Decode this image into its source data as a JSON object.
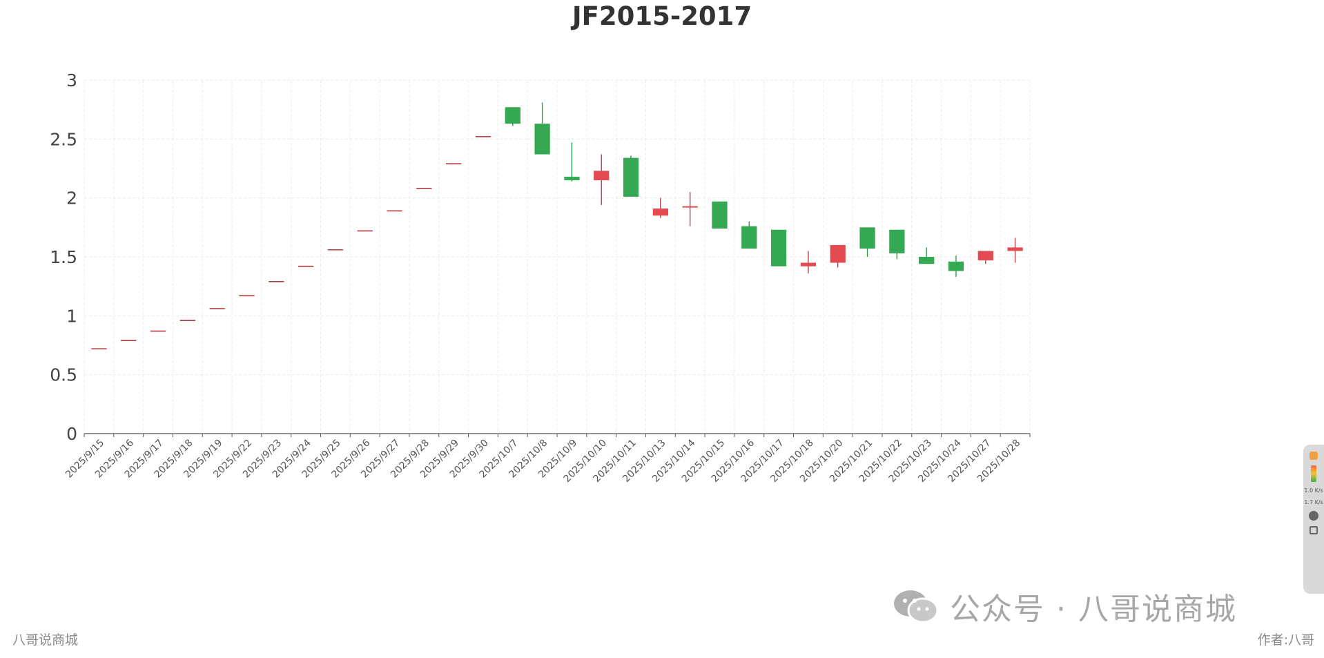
{
  "chart_data": {
    "type": "candlestick",
    "title": "JF2015-2017",
    "xlabel": "",
    "ylabel": "",
    "ylim": [
      0,
      3
    ],
    "y_ticks": [
      "0",
      "0.5",
      "1",
      "1.5",
      "2",
      "2.5",
      "3"
    ],
    "grid": true,
    "legend": "none",
    "categories": [
      "2025/9/15",
      "2025/9/16",
      "2025/9/17",
      "2025/9/18",
      "2025/9/19",
      "2025/9/22",
      "2025/9/23",
      "2025/9/24",
      "2025/9/25",
      "2025/9/26",
      "2025/9/27",
      "2025/9/28",
      "2025/9/29",
      "2025/9/30",
      "2025/10/7",
      "2025/10/8",
      "2025/10/9",
      "2025/10/10",
      "2025/10/11",
      "2025/10/13",
      "2025/10/14",
      "2025/10/15",
      "2025/10/16",
      "2025/10/17",
      "2025/10/18",
      "2025/10/20",
      "2025/10/21",
      "2025/10/22",
      "2025/10/23",
      "2025/10/24",
      "2025/10/27",
      "2025/10/28"
    ],
    "ohlc": [
      {
        "open": 0.72,
        "close": 0.72,
        "high": 0.72,
        "low": 0.72
      },
      {
        "open": 0.79,
        "close": 0.79,
        "high": 0.79,
        "low": 0.79
      },
      {
        "open": 0.87,
        "close": 0.87,
        "high": 0.87,
        "low": 0.87
      },
      {
        "open": 0.96,
        "close": 0.96,
        "high": 0.96,
        "low": 0.96
      },
      {
        "open": 1.06,
        "close": 1.06,
        "high": 1.06,
        "low": 1.06
      },
      {
        "open": 1.17,
        "close": 1.17,
        "high": 1.17,
        "low": 1.17
      },
      {
        "open": 1.29,
        "close": 1.29,
        "high": 1.29,
        "low": 1.29
      },
      {
        "open": 1.42,
        "close": 1.42,
        "high": 1.42,
        "low": 1.42
      },
      {
        "open": 1.56,
        "close": 1.56,
        "high": 1.56,
        "low": 1.56
      },
      {
        "open": 1.72,
        "close": 1.72,
        "high": 1.72,
        "low": 1.72
      },
      {
        "open": 1.89,
        "close": 1.89,
        "high": 1.89,
        "low": 1.89
      },
      {
        "open": 2.08,
        "close": 2.08,
        "high": 2.08,
        "low": 2.08
      },
      {
        "open": 2.29,
        "close": 2.29,
        "high": 2.29,
        "low": 2.29
      },
      {
        "open": 2.52,
        "close": 2.52,
        "high": 2.52,
        "low": 2.52
      },
      {
        "open": 2.77,
        "close": 2.63,
        "high": 2.77,
        "low": 2.61
      },
      {
        "open": 2.63,
        "close": 2.37,
        "high": 2.81,
        "low": 2.37
      },
      {
        "open": 2.18,
        "close": 2.15,
        "high": 2.47,
        "low": 2.14
      },
      {
        "open": 2.15,
        "close": 2.23,
        "high": 2.37,
        "low": 1.94
      },
      {
        "open": 2.34,
        "close": 2.01,
        "high": 2.36,
        "low": 2.01
      },
      {
        "open": 1.85,
        "close": 1.91,
        "high": 2.0,
        "low": 1.83
      },
      {
        "open": 1.92,
        "close": 1.93,
        "high": 2.05,
        "low": 1.76
      },
      {
        "open": 1.97,
        "close": 1.74,
        "high": 1.97,
        "low": 1.74
      },
      {
        "open": 1.76,
        "close": 1.57,
        "high": 1.8,
        "low": 1.57
      },
      {
        "open": 1.73,
        "close": 1.42,
        "high": 1.73,
        "low": 1.42
      },
      {
        "open": 1.42,
        "close": 1.45,
        "high": 1.55,
        "low": 1.36
      },
      {
        "open": 1.45,
        "close": 1.6,
        "high": 1.6,
        "low": 1.41
      },
      {
        "open": 1.75,
        "close": 1.57,
        "high": 1.75,
        "low": 1.5
      },
      {
        "open": 1.73,
        "close": 1.53,
        "high": 1.73,
        "low": 1.48
      },
      {
        "open": 1.5,
        "close": 1.44,
        "high": 1.58,
        "low": 1.44
      },
      {
        "open": 1.46,
        "close": 1.38,
        "high": 1.51,
        "low": 1.33
      },
      {
        "open": 1.47,
        "close": 1.55,
        "high": 1.55,
        "low": 1.44
      },
      {
        "open": 1.55,
        "close": 1.58,
        "high": 1.66,
        "low": 1.45
      }
    ],
    "colors": {
      "up": "#e34a51",
      "down": "#34a853",
      "flat": "#b03a40",
      "wick_up": "#b2434a",
      "wick_down": "#2f9a4b"
    }
  },
  "footer": {
    "left": "八哥说商城",
    "right": "作者:八哥"
  },
  "watermark": {
    "text": "公众号 · 八哥说商城",
    "icon": "wechat-icon"
  },
  "side_panel": {
    "icons": [
      "badge-icon",
      "gauge-icon",
      "pie-icon",
      "chart-icon"
    ],
    "speed_lines": [
      "1.0 K/s",
      "1.7 K/s"
    ]
  }
}
